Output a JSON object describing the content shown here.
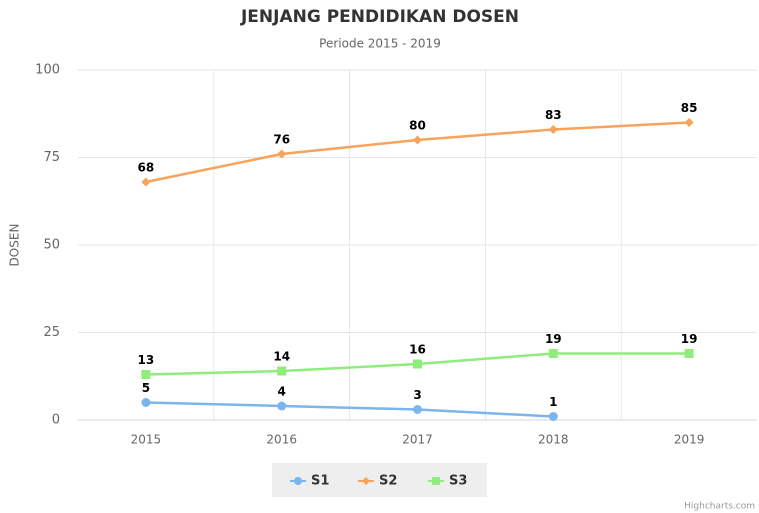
{
  "chart_data": {
    "type": "line",
    "title": "JENJANG PENDIDIKAN DOSEN",
    "subtitle": "Periode 2015 - 2019",
    "y_axis_label": "DOSEN",
    "categories": [
      "2015",
      "2016",
      "2017",
      "2018",
      "2019"
    ],
    "series": [
      {
        "name": "S1",
        "color": "#7cb5ec",
        "marker": "circle",
        "values": [
          5,
          4,
          3,
          1,
          null
        ]
      },
      {
        "name": "S2",
        "color": "#f7a35c",
        "marker": "diamond",
        "values": [
          68,
          76,
          80,
          83,
          85
        ]
      },
      {
        "name": "S3",
        "color": "#90ed7d",
        "marker": "square",
        "values": [
          13,
          14,
          16,
          19,
          19
        ]
      }
    ],
    "ylim": [
      0,
      100
    ],
    "yticks": [
      0,
      25,
      50,
      75,
      100
    ],
    "grid": true,
    "legend": "bottom",
    "credits": "Highcharts.com"
  }
}
